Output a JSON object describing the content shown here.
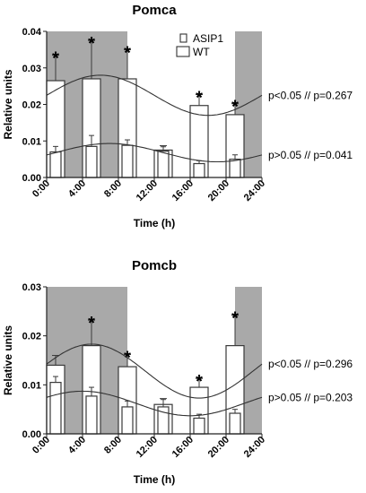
{
  "colors": {
    "dark_phase": "#a9a9a9",
    "bar_fill": "#ffffff",
    "bar_stroke": "#3a3a3a",
    "curve": "#333333"
  },
  "legend": {
    "asip1_label": "ASIP1",
    "wt_label": "WT"
  },
  "chart_data": [
    {
      "type": "bar",
      "title": "Pomca",
      "xlabel": "Time (h)",
      "ylabel": "Relative units",
      "x_ticks": [
        "0:00",
        "4:00",
        "8:00",
        "12:00",
        "16:00",
        "20:00",
        "24:00"
      ],
      "xlim": [
        0,
        24
      ],
      "ylim": [
        0,
        0.04
      ],
      "y_ticks": [
        "0.00",
        "0.01",
        "0.02",
        "0.03",
        "0.04"
      ],
      "dark_periods": [
        [
          0,
          9
        ],
        [
          21,
          24
        ]
      ],
      "time_points": [
        1,
        5,
        9,
        13,
        17,
        21
      ],
      "series": [
        {
          "name": "WT",
          "values": [
            0.0265,
            0.027,
            0.027,
            0.0075,
            0.0197,
            0.0172
          ],
          "errors": [
            0.007,
            0.0105,
            0.008,
            0.0012,
            0.003,
            0.003
          ]
        },
        {
          "name": "ASIP1",
          "values": [
            0.007,
            0.0085,
            0.0088,
            0.0072,
            0.0038,
            0.005
          ],
          "errors": [
            0.0015,
            0.003,
            0.0015,
            0.0012,
            0.0008,
            0.0012
          ]
        }
      ],
      "significant": [
        "*",
        "*",
        "*",
        "",
        "*",
        "*"
      ],
      "fits": [
        {
          "series": "WT",
          "mesor": 0.0225,
          "amplitude": 0.0055,
          "peak_hour": 6,
          "annotation": "p<0.05 // p=0.267"
        },
        {
          "series": "ASIP1",
          "mesor": 0.0068,
          "amplitude": 0.0025,
          "peak_hour": 7,
          "annotation": "p>0.05 // p=0.041"
        }
      ]
    },
    {
      "type": "bar",
      "title": "Pomcb",
      "xlabel": "Time (h)",
      "ylabel": "Relative units",
      "x_ticks": [
        "0:00",
        "4:00",
        "8:00",
        "12:00",
        "16:00",
        "20:00",
        "24:00"
      ],
      "xlim": [
        0,
        24
      ],
      "ylim": [
        0,
        0.03
      ],
      "y_ticks": [
        "0.00",
        "0.01",
        "0.02",
        "0.03"
      ],
      "dark_periods": [
        [
          0,
          9
        ],
        [
          21,
          24
        ]
      ],
      "time_points": [
        1,
        5,
        9,
        13,
        17,
        21
      ],
      "series": [
        {
          "name": "WT",
          "values": [
            0.014,
            0.018,
            0.0137,
            0.006,
            0.0095,
            0.018
          ],
          "errors": [
            0.002,
            0.0052,
            0.0025,
            0.0012,
            0.0018,
            0.0062
          ]
        },
        {
          "name": "ASIP1",
          "values": [
            0.0105,
            0.0077,
            0.0055,
            0.0055,
            0.0032,
            0.0042
          ],
          "errors": [
            0.0012,
            0.0018,
            0.0012,
            0.0015,
            0.0008,
            0.0008
          ]
        }
      ],
      "significant": [
        "",
        "*",
        "*",
        "",
        "*",
        "*"
      ],
      "fits": [
        {
          "series": "WT",
          "mesor": 0.0128,
          "amplitude": 0.0055,
          "peak_hour": 5,
          "annotation": "p<0.05 // p=0.296"
        },
        {
          "series": "ASIP1",
          "mesor": 0.0062,
          "amplitude": 0.0025,
          "peak_hour": 4,
          "annotation": "p>0.05 // p=0.203"
        }
      ]
    }
  ]
}
